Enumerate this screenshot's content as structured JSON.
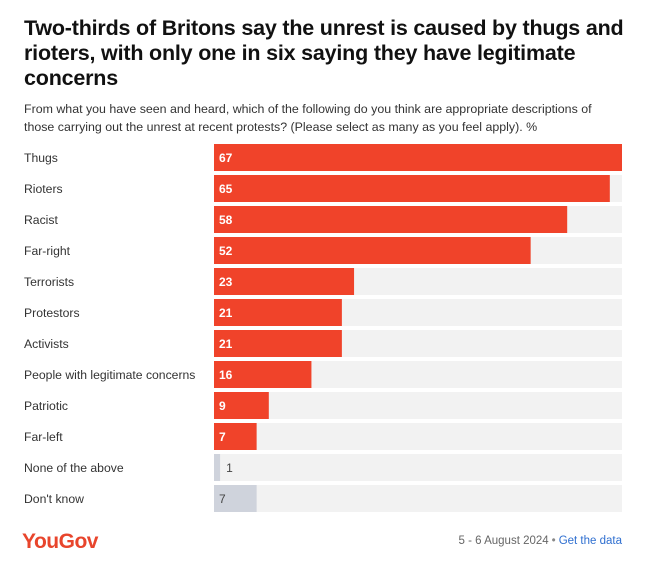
{
  "title": "Two-thirds of Britons say the unrest is caused by thugs and rioters, with only one in six saying they have legitimate concerns",
  "subtitle": "From what you have seen and heard, which of the following do you think are appropriate descriptions of those carrying out the unrest at recent protests? (Please select as many as you feel apply). %",
  "brand": "YouGov",
  "footer": {
    "date": "5 - 6 August 2024",
    "separator": "•",
    "link": "Get the data"
  },
  "colors": {
    "primary_bar": "#f0432a",
    "secondary_bar": "#cfd3dc",
    "track": "#f2f2f2",
    "brand": "#e8452c"
  },
  "chart_data": {
    "type": "bar",
    "orientation": "horizontal",
    "categories": [
      "Thugs",
      "Rioters",
      "Racist",
      "Far-right",
      "Terrorists",
      "Protestors",
      "Activists",
      "People with legitimate concerns",
      "Patriotic",
      "Far-left",
      "None of the above",
      "Don't know"
    ],
    "values": [
      67,
      65,
      58,
      52,
      23,
      21,
      21,
      16,
      9,
      7,
      1,
      7
    ],
    "highlight": [
      true,
      true,
      true,
      true,
      true,
      true,
      true,
      true,
      true,
      true,
      false,
      false
    ],
    "xlim": [
      0,
      67
    ],
    "grid": false,
    "legend": "none"
  }
}
